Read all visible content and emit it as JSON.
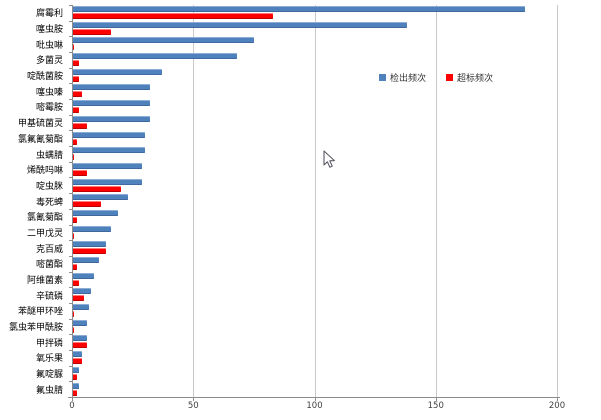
{
  "chart_data": {
    "type": "bar",
    "orientation": "horizontal",
    "title": "",
    "xlabel": "",
    "ylabel": "",
    "xlim": [
      0,
      200
    ],
    "x_ticks": [
      "0",
      "50",
      "100",
      "150",
      "200"
    ],
    "grid": "vertical",
    "legend_position": "center-right",
    "categories": [
      "腐霉利",
      "噻虫胺",
      "吡虫啉",
      "多菌灵",
      "啶酰菌胺",
      "噻虫嗪",
      "嘧霉胺",
      "甲基硫菌灵",
      "氯氟氰菊酯",
      "虫螨腈",
      "烯酰吗啉",
      "啶虫脒",
      "毒死蜱",
      "氯氰菊酯",
      "二甲戊灵",
      "克百威",
      "嘧菌酯",
      "阿维菌素",
      "辛硫磷",
      "苯醚甲环唑",
      "氯虫苯甲酰胺",
      "甲拌磷",
      "氧乐果",
      "氟啶脲",
      "氟虫腈"
    ],
    "series": [
      {
        "name": "检出频次",
        "color": "#4f81bd",
        "values": [
          187,
          138,
          75,
          68,
          37,
          32,
          32,
          32,
          30,
          30,
          29,
          29,
          23,
          19,
          16,
          14,
          11,
          9,
          8,
          7,
          6,
          6,
          4,
          3,
          3
        ]
      },
      {
        "name": "超标频次",
        "color": "#fe0000",
        "values": [
          83,
          16,
          1,
          3,
          3,
          4,
          3,
          6,
          2,
          1,
          6,
          20,
          12,
          2,
          1,
          14,
          2,
          3,
          5,
          1,
          1,
          6,
          4,
          2,
          2
        ]
      }
    ]
  },
  "legend": {
    "items": [
      {
        "label": "检出频次",
        "color": "#4f81bd"
      },
      {
        "label": "超标频次",
        "color": "#fe0000"
      }
    ]
  },
  "colors": {
    "bar_detection": "#4f81bd",
    "bar_exceedance": "#fe0000",
    "gridline": "#c9c9c9",
    "axis": "#8c8c8c",
    "tick_text": "#3f3f3f",
    "background": "#ffffff"
  }
}
